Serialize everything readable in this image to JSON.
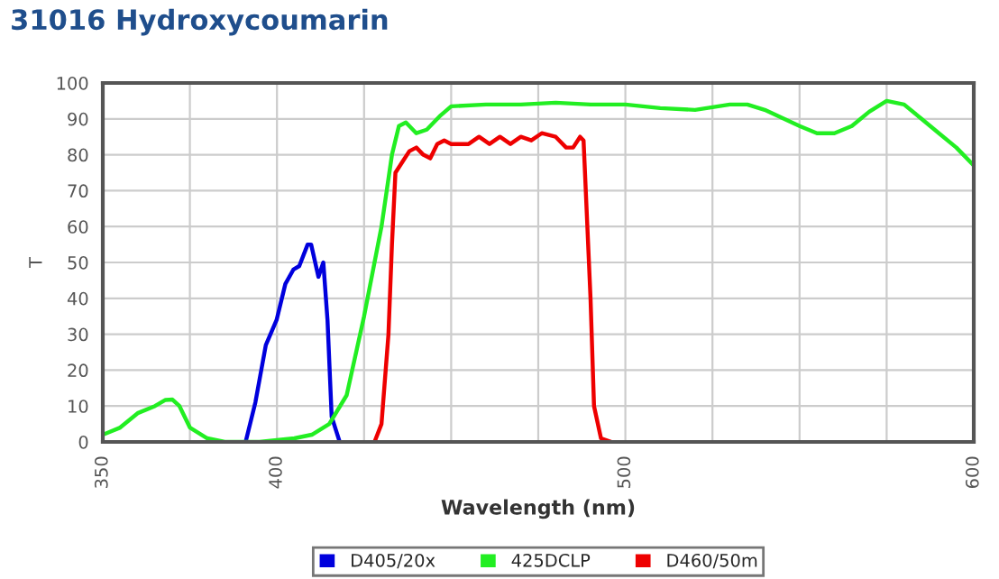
{
  "chart_data": {
    "type": "line",
    "title": "31016 Hydroxycoumarin",
    "xlabel": "Wavelength (nm)",
    "ylabel": "T",
    "xlim": [
      350,
      600
    ],
    "xticks": [
      350,
      {
        "value": 375,
        "label": null
      },
      400,
      {
        "value": 425,
        "label": null
      },
      {
        "value": 450,
        "label": null
      },
      {
        "value": 475,
        "label": null
      },
      500,
      {
        "value": 525,
        "label": null
      },
      {
        "value": 550,
        "label": null
      },
      {
        "value": 575,
        "label": null
      },
      600
    ],
    "ylim": [
      0,
      100
    ],
    "yticks": [
      0,
      10,
      20,
      30,
      40,
      50,
      60,
      70,
      80,
      90,
      100
    ],
    "grid": true,
    "legend": "bottom",
    "series": [
      {
        "name": "D405/20x",
        "color": "#0000dd",
        "x": [
          391,
          393.8,
          396.8,
          399.9,
          402.4,
          404.7,
          406.4,
          408.8,
          409.8,
          411.9,
          413.3,
          414.5,
          415.7,
          418
        ],
        "values": [
          0,
          11,
          27,
          34,
          44,
          48,
          49,
          55,
          55,
          46,
          50,
          34,
          7,
          0
        ]
      },
      {
        "name": "425DCLP",
        "color": "#22ee22",
        "x": [
          350,
          355,
          360,
          365,
          368,
          370,
          372,
          375,
          380,
          385,
          395,
          405,
          410,
          415,
          420,
          425,
          430,
          433,
          435,
          437,
          440,
          443,
          447,
          450,
          460,
          470,
          480,
          490,
          500,
          510,
          520,
          530,
          535,
          540,
          550,
          555,
          560,
          565,
          570,
          575,
          580,
          585,
          590,
          595,
          600
        ],
        "values": [
          2,
          4,
          8,
          10,
          11.7,
          11.8,
          10,
          4,
          1,
          0,
          0,
          1,
          2,
          5,
          13,
          35,
          60,
          80,
          88,
          89,
          86,
          87,
          91,
          93.5,
          94,
          94,
          94.5,
          94,
          94,
          93,
          92.5,
          94,
          94,
          92.5,
          88,
          86,
          86,
          88,
          92,
          95,
          94,
          90,
          86,
          82,
          77
        ]
      },
      {
        "name": "D460/50m",
        "color": "#ee0000",
        "x": [
          428,
          430,
          432,
          433,
          434,
          436,
          438,
          440,
          442,
          444,
          446,
          448,
          450,
          455,
          458,
          461,
          464,
          467,
          470,
          473,
          476,
          480,
          483,
          485,
          487,
          488,
          490,
          491,
          493,
          496
        ],
        "values": [
          0,
          5,
          30,
          55,
          75,
          78,
          81,
          82,
          80,
          79,
          83,
          84,
          83,
          83,
          85,
          83,
          85,
          83,
          85,
          84,
          86,
          85,
          82,
          82,
          85,
          84,
          40,
          10,
          1,
          0
        ]
      }
    ]
  }
}
